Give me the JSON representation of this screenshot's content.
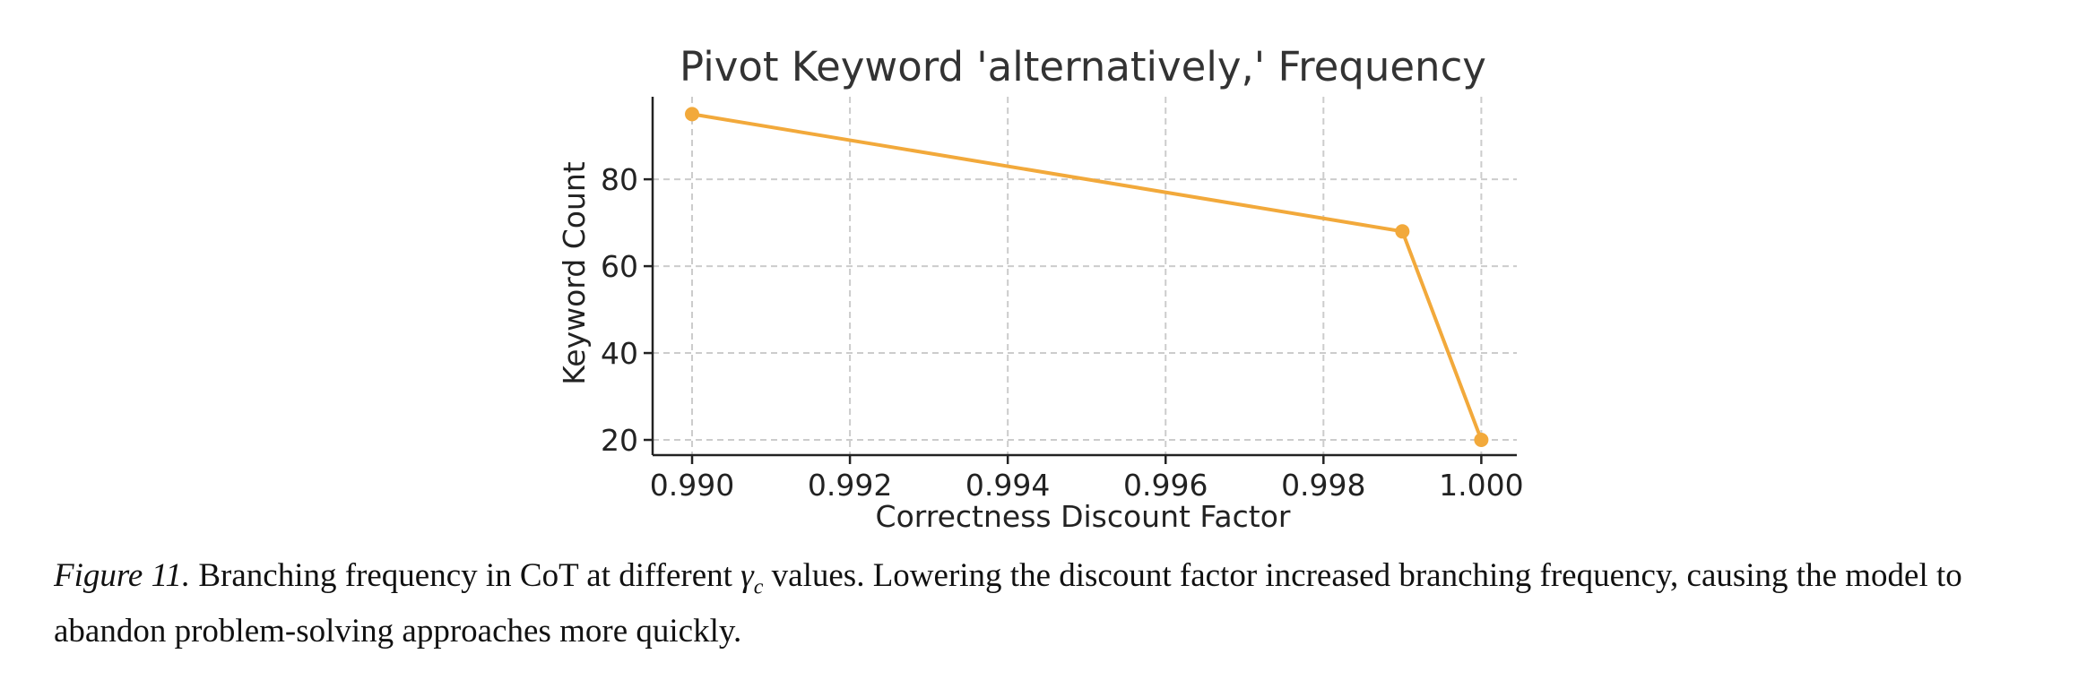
{
  "chart_data": {
    "type": "line",
    "title": "Pivot Keyword 'alternatively,' Frequency",
    "xlabel": "Correctness Discount Factor",
    "ylabel": "Keyword Count",
    "x": [
      0.99,
      0.999,
      1.0
    ],
    "series": [
      {
        "values": [
          95,
          68,
          20
        ],
        "color": "#F2A93B"
      }
    ],
    "xlim": [
      0.9895,
      1.00045
    ],
    "ylim": [
      16.5,
      99
    ],
    "xticks": [
      0.99,
      0.992,
      0.994,
      0.996,
      0.998,
      1.0
    ],
    "xtick_labels": [
      "0.990",
      "0.992",
      "0.994",
      "0.996",
      "0.998",
      "1.000"
    ],
    "yticks": [
      20,
      40,
      60,
      80
    ],
    "ytick_labels": [
      "20",
      "40",
      "60",
      "80"
    ],
    "grid": true,
    "grid_style": "dashed"
  },
  "caption": {
    "figure_label": "Figure 11.",
    "text_before_symbol": "Branching frequency in CoT at different",
    "symbol_base": "γ",
    "symbol_sub": "c",
    "text_after_symbol": "values. Lowering the discount factor increased branching frequency, causing the model to abandon problem-solving approaches more quickly."
  }
}
